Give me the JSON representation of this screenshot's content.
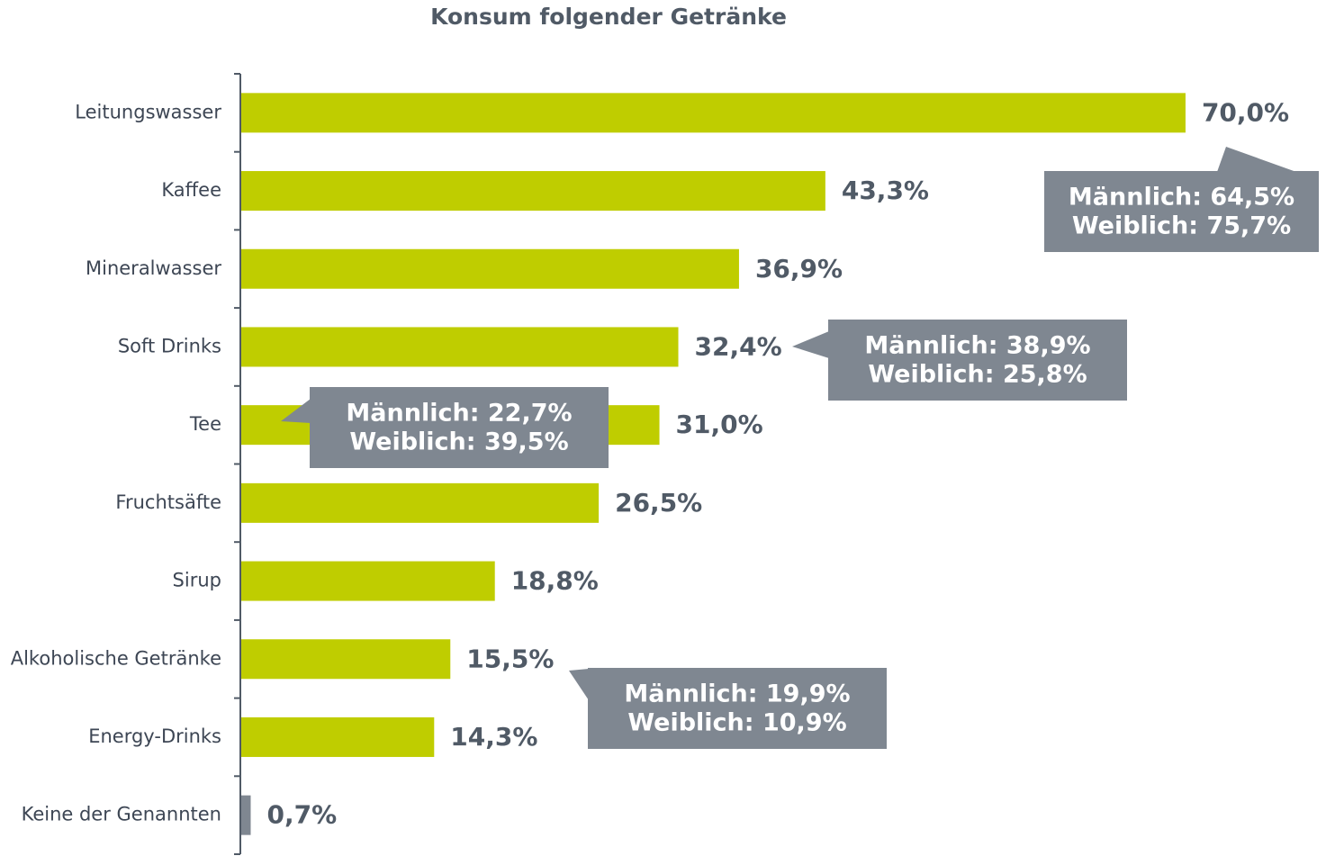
{
  "chart_data": {
    "type": "hbar",
    "title": "Konsum folgender Getränke",
    "categories": [
      "Leitungswasser",
      "Kaffee",
      "Mineralwasser",
      "Soft Drinks",
      "Tee",
      "Fruchtsäfte",
      "Sirup",
      "Alkoholische  Getränke",
      "Energy-Drinks",
      "Keine der Genannten"
    ],
    "values": [
      70.0,
      43.3,
      36.9,
      32.4,
      31.0,
      26.5,
      18.8,
      15.5,
      14.3,
      0.7
    ],
    "value_labels": [
      "70,0%",
      "43,3%",
      "36,9%",
      "32,4%",
      "31,0%",
      "26,5%",
      "18,8%",
      "15,5%",
      "14,3%",
      "0,7%"
    ],
    "colors": [
      "#bfcd00",
      "#bfcd00",
      "#bfcd00",
      "#bfcd00",
      "#bfcd00",
      "#bfcd00",
      "#bfcd00",
      "#bfcd00",
      "#bfcd00",
      "#7f8791"
    ],
    "annotations": [
      {
        "lines": [
          "Männlich: 64,5%",
          "Weiblich: 75,7%"
        ]
      },
      {
        "lines": [
          "Männlich: 38,9%",
          "Weiblich: 25,8%"
        ]
      },
      {
        "lines": [
          "Männlich: 22,7%",
          "Weiblich: 39,5%"
        ]
      },
      {
        "lines": [
          "Männlich: 19,9%",
          "Weiblich: 10,9%"
        ]
      }
    ]
  }
}
